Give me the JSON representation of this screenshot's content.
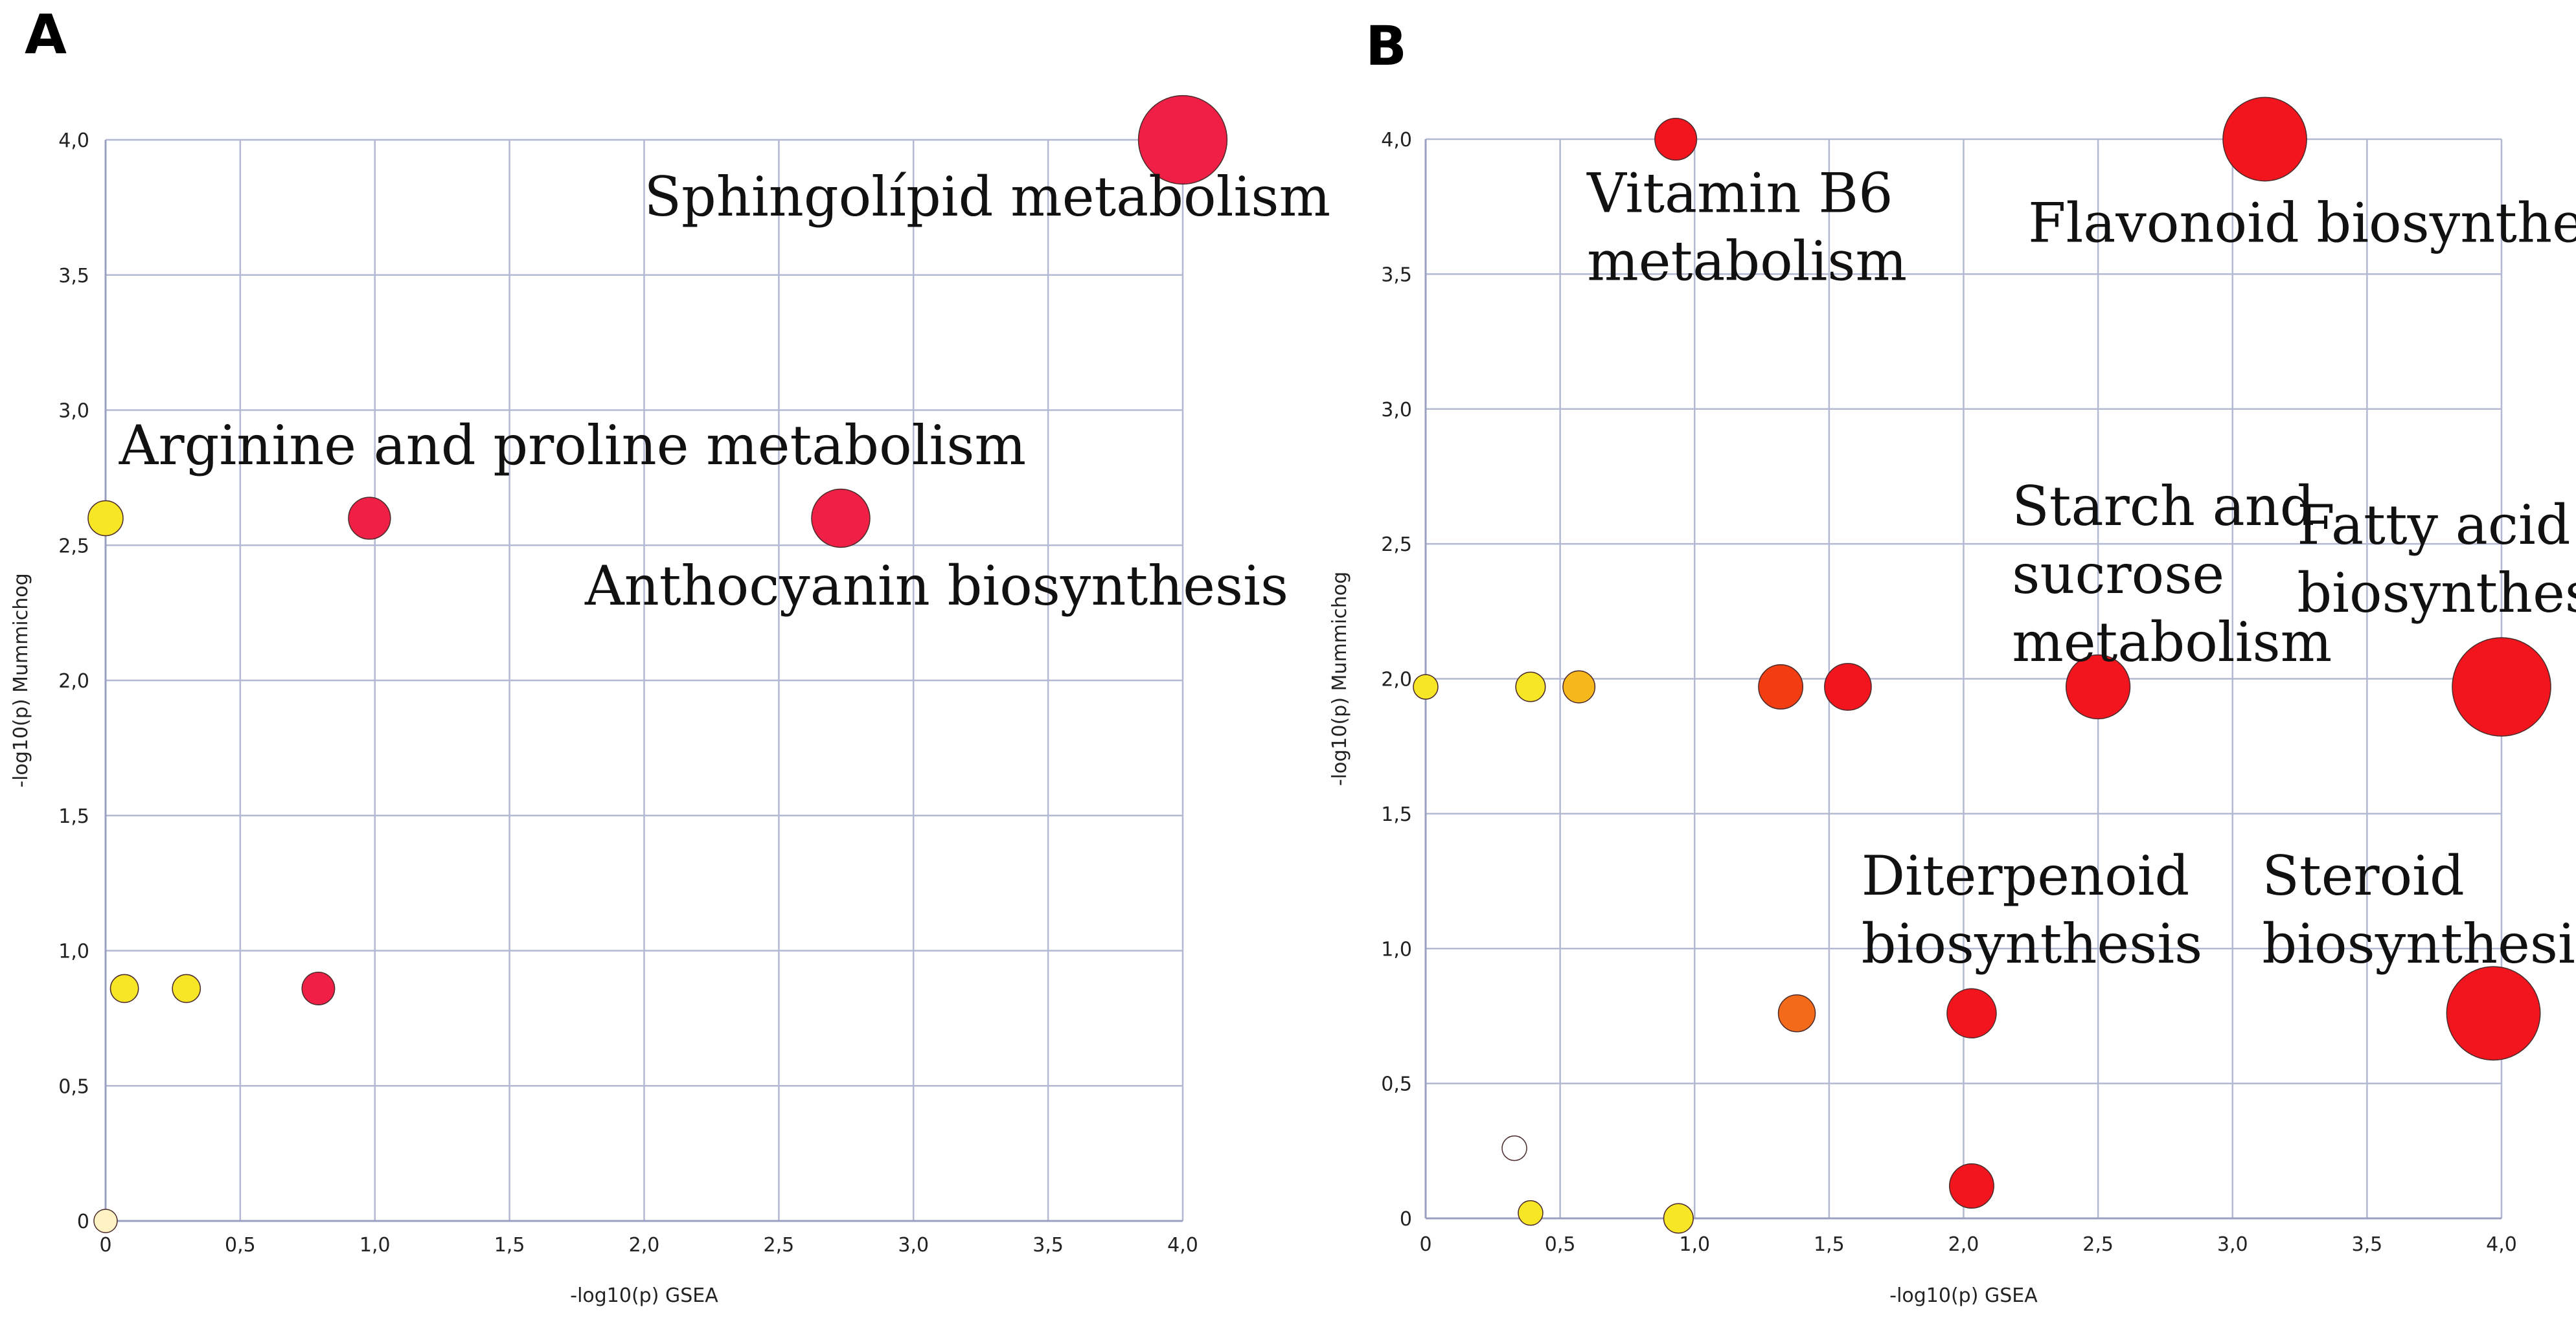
{
  "colors": {
    "white": "#ffffff",
    "pale_yellow": "#fff3c4",
    "yellow": "#f7e625",
    "orange_yellow": "#f7b81c",
    "orange": "#f36a1a",
    "orange_red": "#f23d12",
    "red": "#f2151e",
    "crimson": "#f01f46",
    "grid": "#b3b8d3"
  },
  "chart_data": [
    {
      "type": "scatter",
      "panel": "A",
      "title": "",
      "xlabel": "-log10(p) GSEA",
      "ylabel": "-log10(p) Mummichog",
      "xlim": [
        0,
        4
      ],
      "ylim": [
        0,
        4
      ],
      "x_ticks": [
        "0",
        "0,5",
        "1,0",
        "1,5",
        "2,0",
        "2,5",
        "3,0",
        "3,5",
        "4,0"
      ],
      "y_ticks": [
        "0",
        "0,5",
        "1,0",
        "1,5",
        "2,0",
        "2,5",
        "3,0",
        "3,5",
        "4,0"
      ],
      "grid": true,
      "points": [
        {
          "x": 0.0,
          "y": 0.0,
          "size": 1.0,
          "color": "pale_yellow"
        },
        {
          "x": 0.07,
          "y": 0.86,
          "size": 1.2,
          "color": "yellow"
        },
        {
          "x": 0.3,
          "y": 0.86,
          "size": 1.2,
          "color": "yellow"
        },
        {
          "x": 0.79,
          "y": 0.86,
          "size": 1.4,
          "color": "crimson"
        },
        {
          "x": 0.0,
          "y": 2.6,
          "size": 1.5,
          "color": "yellow"
        },
        {
          "x": 0.98,
          "y": 2.6,
          "size": 1.8,
          "color": "crimson"
        },
        {
          "x": 2.73,
          "y": 2.6,
          "size": 2.5,
          "color": "crimson"
        },
        {
          "x": 4.0,
          "y": 4.0,
          "size": 3.8,
          "color": "crimson"
        }
      ],
      "annotations": [
        {
          "lines": [
            "Sphingolípid metabolism"
          ],
          "x": 2.0,
          "y": 3.72,
          "align": "start"
        },
        {
          "lines": [
            "Arginine and proline metabolism"
          ],
          "x": 0.05,
          "y": 2.8,
          "align": "start"
        },
        {
          "lines": [
            "Anthocyanin biosynthesis"
          ],
          "x": 1.78,
          "y": 2.28,
          "align": "start"
        }
      ]
    },
    {
      "type": "scatter",
      "panel": "B",
      "title": "",
      "xlabel": "-log10(p) GSEA",
      "ylabel": "-log10(p) Mummichog",
      "xlim": [
        0,
        4
      ],
      "ylim": [
        0,
        4
      ],
      "x_ticks": [
        "0",
        "0,5",
        "1,0",
        "1,5",
        "2,0",
        "2,5",
        "3,0",
        "3,5",
        "4,0"
      ],
      "y_ticks": [
        "0",
        "0,5",
        "1,0",
        "1,5",
        "2,0",
        "2,5",
        "3,0",
        "3,5",
        "4,0"
      ],
      "grid": true,
      "points": [
        {
          "x": 0.33,
          "y": 0.26,
          "size": 1.0,
          "color": "white"
        },
        {
          "x": 0.39,
          "y": 0.02,
          "size": 1.0,
          "color": "yellow"
        },
        {
          "x": 0.94,
          "y": 0.0,
          "size": 1.2,
          "color": "yellow"
        },
        {
          "x": 2.03,
          "y": 0.12,
          "size": 1.8,
          "color": "red"
        },
        {
          "x": 0.0,
          "y": 1.97,
          "size": 1.0,
          "color": "yellow"
        },
        {
          "x": 0.39,
          "y": 1.97,
          "size": 1.2,
          "color": "yellow"
        },
        {
          "x": 0.57,
          "y": 1.97,
          "size": 1.3,
          "color": "orange_yellow"
        },
        {
          "x": 1.32,
          "y": 1.97,
          "size": 1.8,
          "color": "orange_red"
        },
        {
          "x": 1.57,
          "y": 1.97,
          "size": 1.9,
          "color": "red"
        },
        {
          "x": 2.5,
          "y": 1.97,
          "size": 2.6,
          "color": "red"
        },
        {
          "x": 4.0,
          "y": 1.97,
          "size": 4.0,
          "color": "red"
        },
        {
          "x": 1.38,
          "y": 0.76,
          "size": 1.5,
          "color": "orange"
        },
        {
          "x": 2.03,
          "y": 0.76,
          "size": 2.0,
          "color": "red"
        },
        {
          "x": 3.97,
          "y": 0.76,
          "size": 3.8,
          "color": "red"
        },
        {
          "x": 0.93,
          "y": 4.0,
          "size": 1.7,
          "color": "red"
        },
        {
          "x": 3.12,
          "y": 4.0,
          "size": 3.4,
          "color": "red"
        }
      ],
      "annotations": [
        {
          "lines": [
            "Vitamin B6",
            "metabolism"
          ],
          "x": 0.6,
          "y": 3.73,
          "align": "start"
        },
        {
          "lines": [
            "Flavonoid biosynthesis"
          ],
          "x": 2.24,
          "y": 3.62,
          "align": "start"
        },
        {
          "lines": [
            "Starch and",
            "sucrose",
            "metabolism"
          ],
          "x": 2.18,
          "y": 2.57,
          "align": "start"
        },
        {
          "lines": [
            "Fatty acid",
            "biosynthesis"
          ],
          "x": 3.24,
          "y": 2.5,
          "align": "start"
        },
        {
          "lines": [
            "Diterpenoid",
            "biosynthesis"
          ],
          "x": 1.62,
          "y": 1.2,
          "align": "start"
        },
        {
          "lines": [
            "Steroid",
            "biosynthesis"
          ],
          "x": 3.11,
          "y": 1.2,
          "align": "start"
        }
      ]
    }
  ]
}
